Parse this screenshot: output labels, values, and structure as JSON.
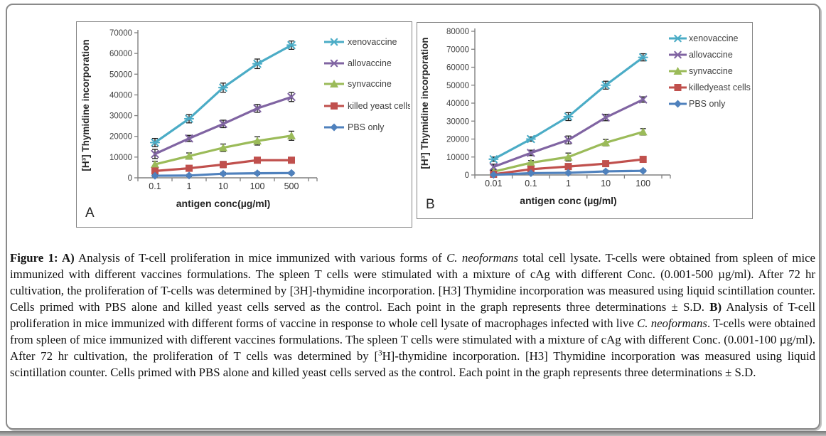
{
  "figure": {
    "caption_runs": [
      {
        "text": "Figure 1: A)",
        "style": "bold"
      },
      {
        "text": " Analysis of T-cell proliferation in mice immunized with various forms of ",
        "style": "normal"
      },
      {
        "text": "C. neoformans",
        "style": "italic"
      },
      {
        "text": " total cell lysate. T-cells were obtained from spleen of mice immunized with different vaccines formulations. The spleen T cells were stimulated with a mixture of cAg with different Conc. (0.001-500 µg/ml). After 72 hr cultivation, the proliferation of T-cells was determined by [3H]-thymidine incorporation. [H3] Thymidine incorporation was measured using liquid scintillation counter. Cells primed with PBS alone and killed yeast cells served as the control. Each point in the graph represents three determinations ± S.D. ",
        "style": "normal"
      },
      {
        "text": "B)",
        "style": "bold"
      },
      {
        "text": " Analysis of T-cell proliferation in mice immunized with different forms of vaccine in response to whole cell lysate of macrophages infected with live ",
        "style": "normal"
      },
      {
        "text": "C. neoformans",
        "style": "italic"
      },
      {
        "text": ". T-cells were obtained from spleen of mice immunized with different vaccines formulations. The spleen T cells were stimulated with a mixture of cAg with different Conc. (0.001-100 µg/ml). After 72 hr cultivation, the proliferation of T cells was determined by [",
        "style": "normal"
      },
      {
        "text": "3",
        "style": "sup"
      },
      {
        "text": "H]-thymidine incorporation. [H3] Thymidine incorporation was measured using liquid scintillation counter. Cells primed with PBS alone and killed yeast cells served as the control. Each point in the graph represents three determinations ± S.D.",
        "style": "normal"
      }
    ]
  },
  "chart_data": [
    {
      "type": "line",
      "panel_label": "A",
      "title": "",
      "xlabel": "antigen conc(µg/ml)",
      "ylabel": "[H³] Thymidine  incorporation",
      "categories": [
        "0.1",
        "1",
        "10",
        "100",
        "500"
      ],
      "ylim": [
        0,
        70000
      ],
      "ytick_step": 10000,
      "grid": false,
      "legend_position": "right",
      "series": [
        {
          "name": "xenovaccine",
          "marker": "asterisk",
          "color": "#4BACC6",
          "values": [
            17000,
            28500,
            43500,
            55000,
            64000
          ],
          "errors": [
            2000,
            2000,
            2200,
            2300,
            2000
          ]
        },
        {
          "name": "allovaccine",
          "marker": "x",
          "color": "#8064A2",
          "values": [
            11500,
            19000,
            26000,
            33500,
            39000
          ],
          "errors": [
            2200,
            1500,
            1800,
            1900,
            2200
          ]
        },
        {
          "name": "synvaccine",
          "marker": "triangle",
          "color": "#9BBB59",
          "values": [
            6500,
            10500,
            14500,
            17800,
            20300
          ],
          "errors": [
            1500,
            1500,
            1800,
            2000,
            2200
          ]
        },
        {
          "name": "killed yeast cells",
          "marker": "square",
          "color": "#C0504D",
          "values": [
            3300,
            4600,
            6400,
            8500,
            8500
          ],
          "errors": [
            800,
            1200,
            1500,
            1000,
            1300
          ]
        },
        {
          "name": "PBS only",
          "marker": "diamond",
          "color": "#4F81BD",
          "values": [
            1000,
            1100,
            2000,
            2200,
            2300
          ],
          "errors": [
            500,
            500,
            600,
            600,
            600
          ]
        }
      ]
    },
    {
      "type": "line",
      "panel_label": "B",
      "title": "",
      "xlabel": "antigen conc (µg/ml)",
      "ylabel": "[H³] Thymidine incorporation",
      "categories": [
        "0.01",
        "0.1",
        "1",
        "10",
        "100"
      ],
      "ylim": [
        0,
        80000
      ],
      "ytick_step": 10000,
      "grid": false,
      "legend_position": "right",
      "series": [
        {
          "name": "xenovaccine",
          "marker": "asterisk",
          "color": "#4BACC6",
          "values": [
            8800,
            20000,
            32500,
            50000,
            65500
          ],
          "errors": [
            1200,
            1200,
            2200,
            2200,
            2000
          ]
        },
        {
          "name": "allovaccine",
          "marker": "x",
          "color": "#8064A2",
          "values": [
            4500,
            12300,
            19500,
            32000,
            42000
          ],
          "errors": [
            1500,
            1500,
            2200,
            1800,
            1500
          ]
        },
        {
          "name": "synvaccine",
          "marker": "triangle",
          "color": "#9BBB59",
          "values": [
            1800,
            6800,
            10000,
            18000,
            24000
          ],
          "errors": [
            800,
            1200,
            2200,
            1800,
            1800
          ]
        },
        {
          "name": "killedyeast cells",
          "marker": "square",
          "color": "#C0504D",
          "values": [
            400,
            3200,
            4700,
            6300,
            8700
          ],
          "errors": [
            600,
            1200,
            1500,
            1000,
            1200
          ]
        },
        {
          "name": "PBS only",
          "marker": "diamond",
          "color": "#4F81BD",
          "values": [
            100,
            1000,
            1200,
            2000,
            2300
          ],
          "errors": [
            400,
            500,
            600,
            600,
            600
          ]
        }
      ]
    }
  ],
  "colors": {
    "xenovaccine": "#4BACC6",
    "allovaccine": "#8064A2",
    "synvaccine": "#9BBB59",
    "killed_yeast_cells": "#C0504D",
    "pbs_only": "#4F81BD",
    "axis": "#808080",
    "tick_label": "#3f3f3f",
    "error_bar": "#1a1a1a"
  }
}
